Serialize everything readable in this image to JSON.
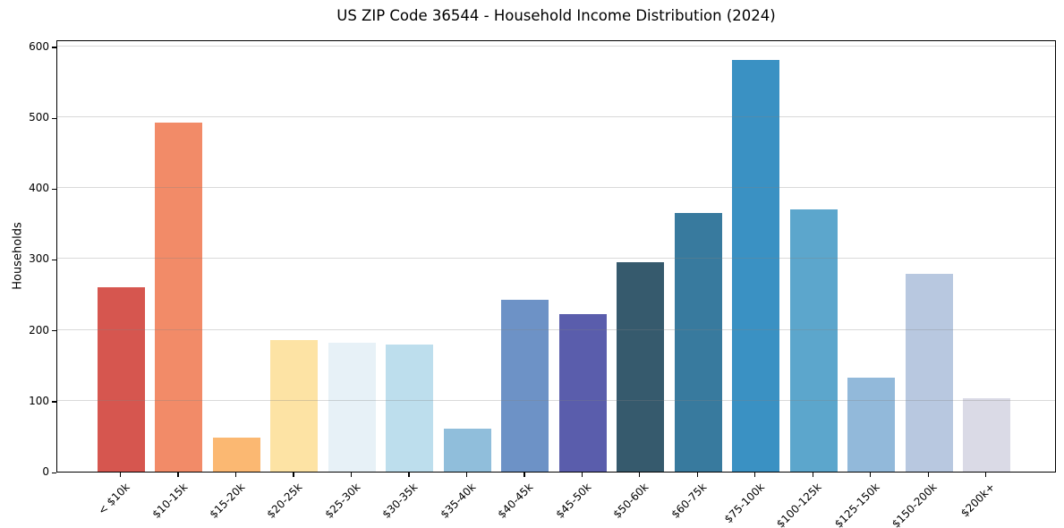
{
  "chart_data": {
    "type": "bar",
    "title": "US ZIP Code 36544 - Household Income Distribution (2024)",
    "xlabel": "",
    "ylabel": "Households",
    "categories": [
      "< $10k",
      "$10-15k",
      "$15-20k",
      "$20-25k",
      "$25-30k",
      "$30-35k",
      "$35-40k",
      "$40-45k",
      "$45-50k",
      "$50-60k",
      "$60-75k",
      "$75-100k",
      "$100-125k",
      "$125-150k",
      "$150-200k",
      "$200k+"
    ],
    "values": [
      260,
      492,
      48,
      186,
      182,
      179,
      61,
      243,
      222,
      295,
      365,
      581,
      370,
      132,
      279,
      103
    ],
    "bar_colors": [
      "#d6564f",
      "#f28b68",
      "#fbb872",
      "#fde3a4",
      "#e7f1f7",
      "#bddeed",
      "#90bedb",
      "#6d92c6",
      "#5a5dac",
      "#365a6d",
      "#387a9e",
      "#3a91c3",
      "#5ca6cc",
      "#92b9da",
      "#b8c8e0",
      "#dadae6"
    ],
    "ylim": [
      0,
      610
    ],
    "yticks": [
      0,
      100,
      200,
      300,
      400,
      500,
      600
    ],
    "grid": true,
    "grid_color": "#e1e1e1",
    "spine_color": "#000000",
    "legend": "none"
  }
}
